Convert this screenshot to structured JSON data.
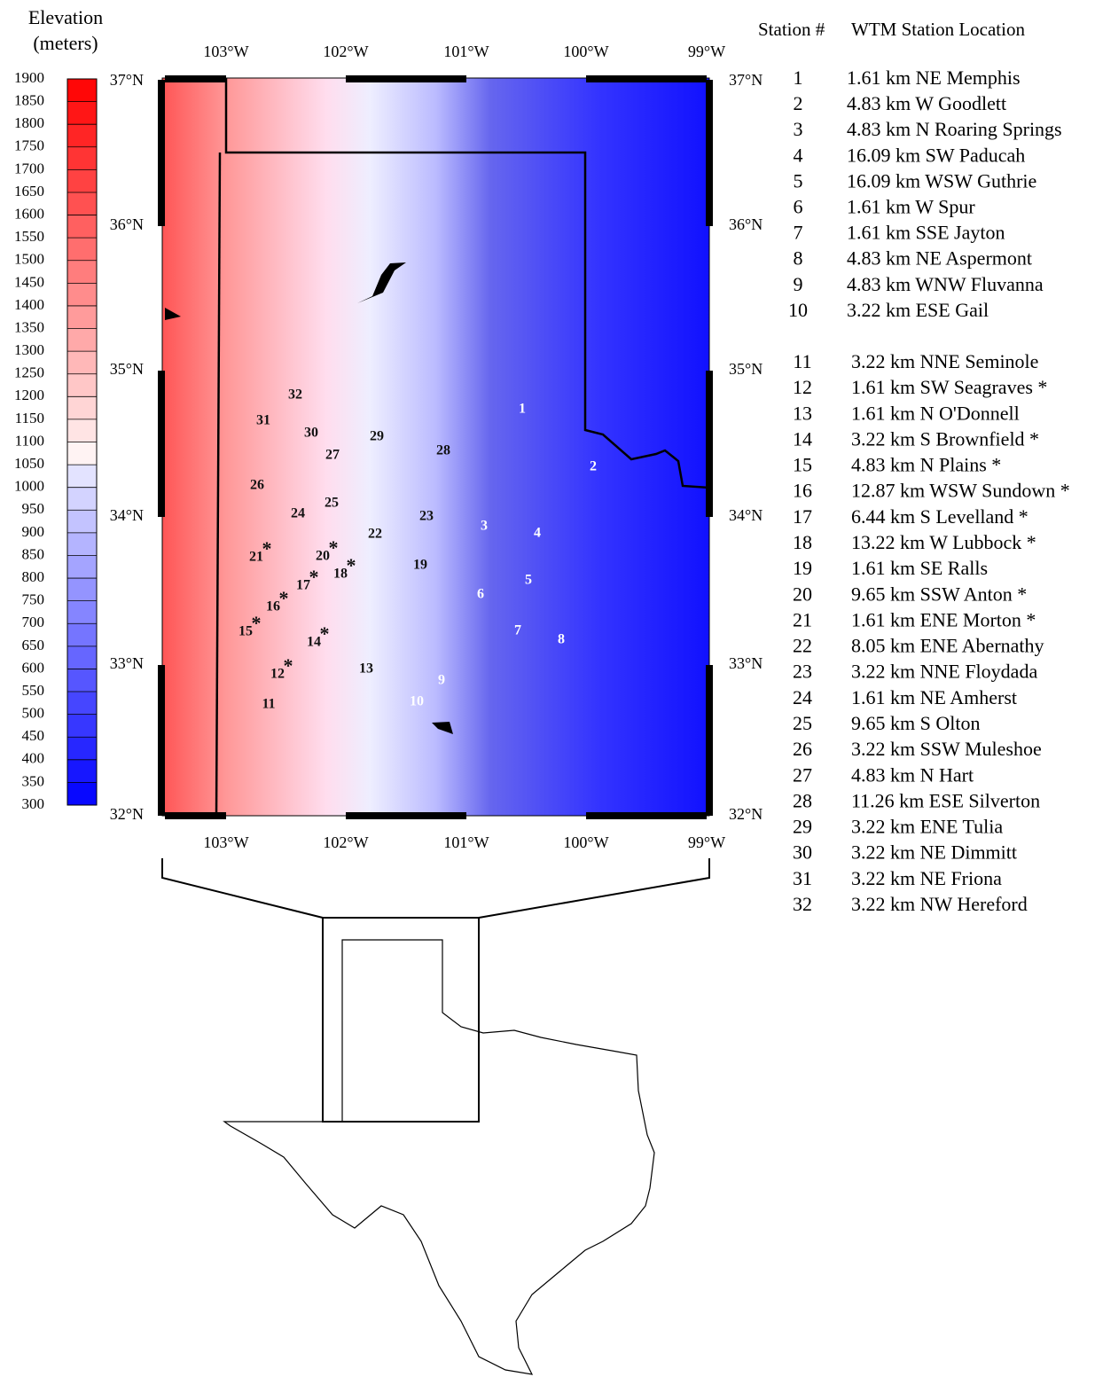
{
  "legend": {
    "title_lines": [
      "Elevation",
      "(meters)"
    ],
    "ticks": [
      1900,
      1850,
      1800,
      1750,
      1700,
      1650,
      1600,
      1550,
      1500,
      1450,
      1400,
      1350,
      1300,
      1250,
      1200,
      1150,
      1100,
      1050,
      1000,
      950,
      900,
      850,
      800,
      750,
      700,
      650,
      600,
      550,
      500,
      450,
      400,
      350,
      300
    ]
  },
  "lon_labels": [
    "103°W",
    "102°W",
    "101°W",
    "100°W",
    "99°W"
  ],
  "lat_labels": [
    "37°N",
    "36°N",
    "35°N",
    "34°N",
    "33°N",
    "32°N"
  ],
  "map_labels": [
    {
      "number": "1"
    },
    {
      "number": "2"
    },
    {
      "number": "3"
    },
    {
      "number": "4"
    },
    {
      "number": "5"
    },
    {
      "number": "6"
    },
    {
      "number": "7"
    },
    {
      "number": "8"
    },
    {
      "number": "9"
    },
    {
      "number": "10"
    },
    {
      "number": "11"
    },
    {
      "number": "12",
      "mark": "*"
    },
    {
      "number": "13"
    },
    {
      "number": "14",
      "mark": "*"
    },
    {
      "number": "15",
      "mark": "*"
    },
    {
      "number": "16",
      "mark": "*"
    },
    {
      "number": "17",
      "mark": "*"
    },
    {
      "number": "18",
      "mark": "*"
    },
    {
      "number": "19"
    },
    {
      "number": "20",
      "mark": "*"
    },
    {
      "number": "21",
      "mark": "*"
    },
    {
      "number": "22"
    },
    {
      "number": "23"
    },
    {
      "number": "24"
    },
    {
      "number": "25"
    },
    {
      "number": "26"
    },
    {
      "number": "27"
    },
    {
      "number": "28"
    },
    {
      "number": "29"
    },
    {
      "number": "30"
    },
    {
      "number": "31"
    },
    {
      "number": "32"
    }
  ],
  "table": {
    "header": [
      "Station #",
      "WTM Station Location"
    ],
    "rows": [
      [
        "1",
        "1.61 km NE Memphis"
      ],
      [
        "2",
        "4.83 km W Goodlett"
      ],
      [
        "3",
        "4.83 km N Roaring Springs"
      ],
      [
        "4",
        "16.09 km SW Paducah"
      ],
      [
        "5",
        "16.09 km WSW Guthrie"
      ],
      [
        "6",
        "1.61 km W Spur"
      ],
      [
        "7",
        "1.61 km SSE Jayton"
      ],
      [
        "8",
        "4.83 km NE Aspermont"
      ],
      [
        "9",
        "4.83 km WNW Fluvanna"
      ],
      [
        "10",
        "3.22 km ESE Gail"
      ],
      [
        "11",
        "3.22 km NNE Seminole"
      ],
      [
        "12",
        "1.61 km SW Seagraves *"
      ],
      [
        "13",
        "1.61 km N O'Donnell"
      ],
      [
        "14",
        "3.22 km S Brownfield *"
      ],
      [
        "15",
        "4.83 km N Plains *"
      ],
      [
        "16",
        "12.87 km WSW Sundown *"
      ],
      [
        "17",
        "6.44 km S Levelland *"
      ],
      [
        "18",
        "13.22 km W Lubbock *"
      ],
      [
        "19",
        "1.61 km SE Ralls"
      ],
      [
        "20",
        "9.65 km SSW Anton *"
      ],
      [
        "21",
        "1.61 km ENE Morton *"
      ],
      [
        "22",
        "8.05 km ENE Abernathy"
      ],
      [
        "23",
        "3.22 km NNE Floydada"
      ],
      [
        "24",
        "1.61 km NE Amherst"
      ],
      [
        "25",
        "9.65 km S Olton"
      ],
      [
        "26",
        "3.22 km SSW Muleshoe"
      ],
      [
        "27",
        "4.83 km N Hart"
      ],
      [
        "28",
        "11.26 km ESE Silverton"
      ],
      [
        "29",
        "3.22 km ENE Tulia"
      ],
      [
        "30",
        "3.22 km NE Dimmitt"
      ],
      [
        "31",
        "3.22 km NE Friona"
      ],
      [
        "32",
        "3.22 km NW Hereford"
      ]
    ]
  }
}
